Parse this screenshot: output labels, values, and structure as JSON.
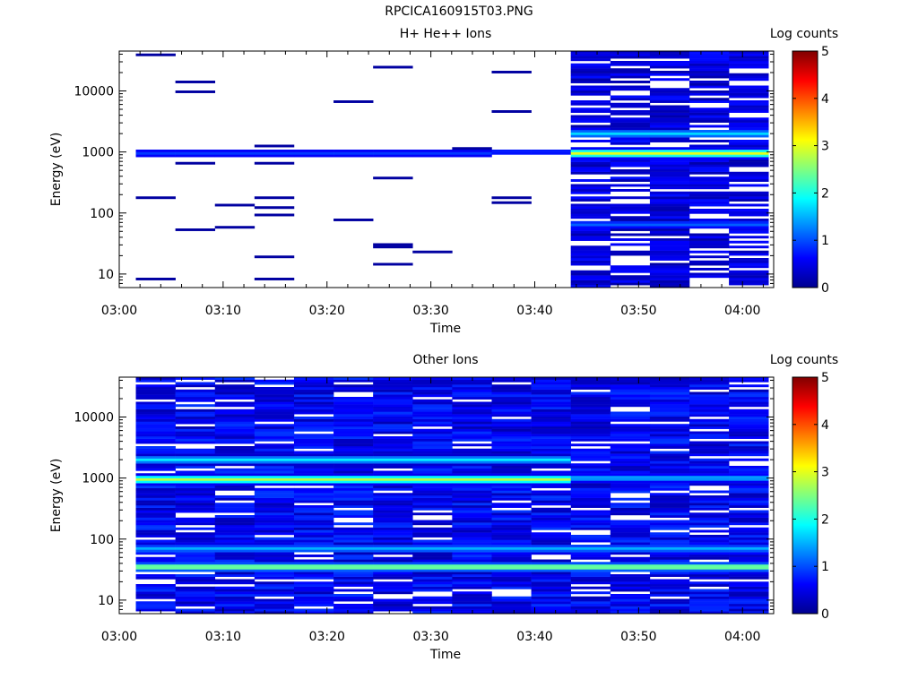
{
  "figure_title": "RPCICA160915T03.PNG",
  "chart_data": [
    {
      "type": "heatmap",
      "title": "H+ He++ Ions",
      "xlabel": "Time",
      "ylabel": "Energy (eV)",
      "x_ticks": [
        "03:00",
        "03:10",
        "03:20",
        "03:30",
        "03:40",
        "03:50",
        "04:00"
      ],
      "x_range": [
        "03:00",
        "04:03"
      ],
      "y_scale": "log",
      "y_ticks": [
        10,
        100,
        1000,
        10000
      ],
      "y_range": [
        6,
        45000
      ],
      "colorbar": {
        "label": "Log counts",
        "min": 0,
        "max": 5,
        "ticks": [
          0,
          1,
          2,
          3,
          4,
          5
        ]
      },
      "active_time_ranges": [
        [
          "03:01.6",
          "03:43.4"
        ],
        [
          "03:43.4",
          "04:02.5"
        ]
      ],
      "intensity_profile": [
        {
          "time_range": [
            "03:01.6",
            "03:36.9"
          ],
          "energy_eV": 950,
          "log_counts": 0.9
        },
        {
          "time_range": [
            "03:36.9",
            "03:43.4"
          ],
          "energy_eV": 1000,
          "log_counts": 0.8
        },
        {
          "time_range": [
            "03:43.4",
            "04:02.5"
          ],
          "energy_eV": 950,
          "log_counts": 3.0
        },
        {
          "time_range": [
            "03:43.4",
            "04:02.5"
          ],
          "energy_eV": 2000,
          "log_counts": 1.7
        },
        {
          "time_range": [
            "03:43.4",
            "04:02.5"
          ],
          "energy_eV": 65,
          "log_counts": 1.1
        }
      ]
    },
    {
      "type": "heatmap",
      "title": "Other Ions",
      "xlabel": "Time",
      "ylabel": "Energy (eV)",
      "x_ticks": [
        "03:00",
        "03:10",
        "03:20",
        "03:30",
        "03:40",
        "03:50",
        "04:00"
      ],
      "x_range": [
        "03:00",
        "04:03"
      ],
      "y_scale": "log",
      "y_ticks": [
        10,
        100,
        1000,
        10000
      ],
      "y_range": [
        6,
        45000
      ],
      "colorbar": {
        "label": "Log counts",
        "min": 0,
        "max": 5,
        "ticks": [
          0,
          1,
          2,
          3,
          4,
          5
        ]
      },
      "intensity_profile": [
        {
          "time_range": [
            "03:01.6",
            "03:43.4"
          ],
          "energy_eV": 950,
          "log_counts": 2.8
        },
        {
          "time_range": [
            "03:01.6",
            "03:43.4"
          ],
          "energy_eV": 2000,
          "log_counts": 1.8
        },
        {
          "time_range": [
            "03:01.6",
            "04:02.5"
          ],
          "energy_eV": 35,
          "log_counts": 2.6
        },
        {
          "time_range": [
            "03:01.6",
            "04:02.5"
          ],
          "energy_eV": 70,
          "log_counts": 1.5
        },
        {
          "time_range": [
            "03:43.4",
            "04:02.5"
          ],
          "energy_eV": 1000,
          "log_counts": 1.5
        }
      ]
    }
  ]
}
